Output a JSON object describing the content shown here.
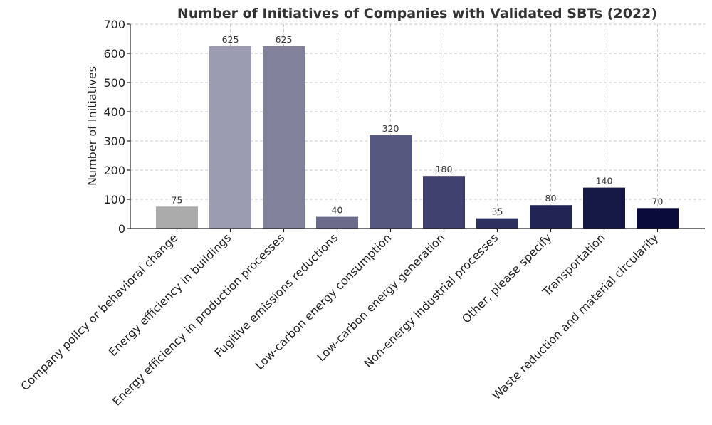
{
  "chart_data": {
    "type": "bar",
    "title": "Number of Initiatives of Companies with Validated SBTs (2022)",
    "xlabel": "",
    "ylabel": "Number of Initiatives",
    "ylim": [
      0,
      700
    ],
    "yticks": [
      0,
      100,
      200,
      300,
      400,
      500,
      600,
      700
    ],
    "grid": true,
    "categories": [
      "Company policy or behavioral change",
      "Energy efficiency in buildings",
      "Energy efficiency in production processes",
      "Fugitive emissions reductions",
      "Low-carbon energy consumption",
      "Low-carbon energy generation",
      "Non-energy industrial processes",
      "Other, please specify",
      "Transportation",
      "Waste reduction and material circularity"
    ],
    "values": [
      75,
      625,
      625,
      40,
      320,
      180,
      35,
      80,
      140,
      70
    ],
    "colors": [
      "#ababab",
      "#9b9cb1",
      "#818199",
      "#6b6c8c",
      "#57587f",
      "#40416e",
      "#2e305f",
      "#222453",
      "#161846",
      "#0a0b3a"
    ]
  }
}
